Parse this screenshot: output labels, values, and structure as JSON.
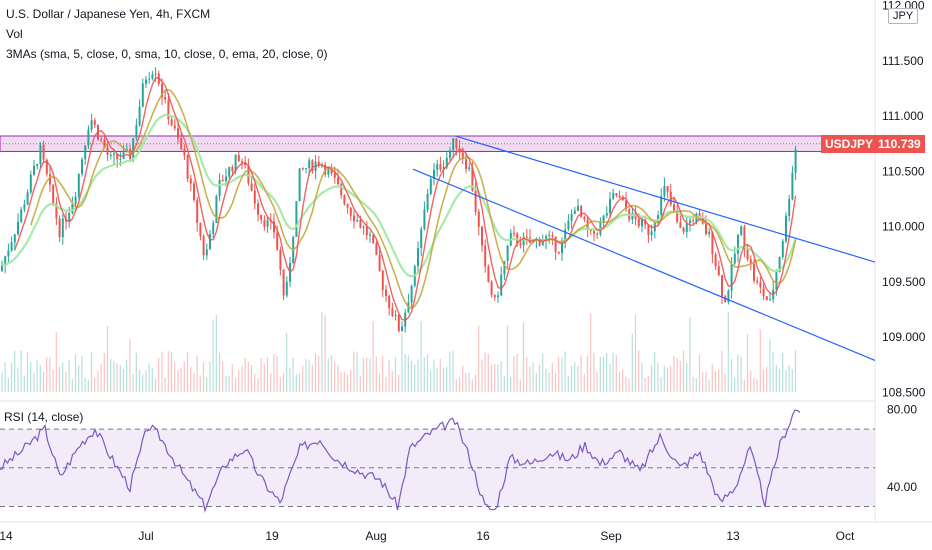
{
  "header": {
    "title": "U.S. Dollar / Japanese Yen, 4h, FXCM",
    "vol_label": "Vol",
    "ma_label": "3MAs (sma, 5, close, 0, sma, 10, close, 0, ema, 20, close, 0)",
    "rsi_label": "RSI (14, close)"
  },
  "currency_badge": "JPY",
  "symbol_tag": "USDJPY",
  "last_price": "110.739",
  "colors": {
    "up": "#26a69a",
    "down": "#ef5350",
    "sma5": "#ef5350",
    "sma10": "#c4a93f",
    "ema20": "#9ee89e",
    "channel": "#2962ff",
    "resistance": "#9c27b0",
    "rsi": "#7e57c2",
    "rsi_band": "#ede7f6"
  },
  "chart_data": {
    "type": "candlestick",
    "price_axis": {
      "ticks": [
        "112.000",
        "111.500",
        "111.000",
        "110.500",
        "110.000",
        "109.500",
        "109.000",
        "108.500"
      ],
      "range": [
        108.45,
        112.05
      ]
    },
    "x_axis": {
      "ticks": [
        "14",
        "Jul",
        "19",
        "Aug",
        "16",
        "Sep",
        "13",
        "Oct"
      ]
    },
    "resistance_zone": [
      110.68,
      110.82
    ],
    "channel": {
      "upper": [
        [
          "Aug 10",
          110.82
        ],
        [
          "Oct 1",
          109.68
        ]
      ],
      "lower": [
        [
          "Aug 4",
          110.52
        ],
        [
          "Oct 1",
          108.79
        ]
      ]
    },
    "price_path": [
      [
        0,
        109.6
      ],
      [
        20,
        110.1
      ],
      [
        40,
        110.7
      ],
      [
        60,
        109.95
      ],
      [
        75,
        110.3
      ],
      [
        90,
        111.0
      ],
      [
        110,
        110.6
      ],
      [
        130,
        110.65
      ],
      [
        145,
        111.35
      ],
      [
        155,
        111.45
      ],
      [
        165,
        111.1
      ],
      [
        185,
        110.6
      ],
      [
        205,
        109.7
      ],
      [
        220,
        110.4
      ],
      [
        240,
        110.65
      ],
      [
        260,
        110.1
      ],
      [
        275,
        109.95
      ],
      [
        285,
        109.3
      ],
      [
        300,
        110.5
      ],
      [
        320,
        110.6
      ],
      [
        335,
        110.4
      ],
      [
        350,
        110.15
      ],
      [
        370,
        109.9
      ],
      [
        385,
        109.4
      ],
      [
        400,
        109.05
      ],
      [
        415,
        109.6
      ],
      [
        430,
        110.45
      ],
      [
        445,
        110.6
      ],
      [
        455,
        110.78
      ],
      [
        470,
        110.5
      ],
      [
        485,
        109.6
      ],
      [
        495,
        109.3
      ],
      [
        510,
        109.9
      ],
      [
        530,
        109.85
      ],
      [
        545,
        109.9
      ],
      [
        560,
        109.8
      ],
      [
        575,
        110.2
      ],
      [
        590,
        109.9
      ],
      [
        600,
        110.0
      ],
      [
        615,
        110.3
      ],
      [
        630,
        110.1
      ],
      [
        650,
        109.95
      ],
      [
        665,
        110.35
      ],
      [
        680,
        109.95
      ],
      [
        695,
        110.1
      ],
      [
        710,
        109.9
      ],
      [
        725,
        109.3
      ],
      [
        740,
        110.0
      ],
      [
        755,
        109.5
      ],
      [
        770,
        109.3
      ],
      [
        785,
        110.0
      ],
      [
        795,
        110.7
      ],
      [
        800,
        110.739
      ]
    ],
    "rsi_axis": {
      "ticks": [
        "80.00",
        "40.00"
      ],
      "range": [
        22,
        84
      ],
      "bands": [
        70,
        30
      ],
      "mid": 50
    },
    "rsi_path": [
      [
        0,
        50
      ],
      [
        20,
        58
      ],
      [
        45,
        70
      ],
      [
        60,
        45
      ],
      [
        80,
        62
      ],
      [
        95,
        70
      ],
      [
        115,
        52
      ],
      [
        130,
        40
      ],
      [
        148,
        72
      ],
      [
        160,
        66
      ],
      [
        185,
        45
      ],
      [
        205,
        30
      ],
      [
        225,
        52
      ],
      [
        245,
        60
      ],
      [
        260,
        45
      ],
      [
        280,
        32
      ],
      [
        300,
        60
      ],
      [
        320,
        65
      ],
      [
        335,
        55
      ],
      [
        360,
        48
      ],
      [
        380,
        44
      ],
      [
        398,
        30
      ],
      [
        410,
        60
      ],
      [
        430,
        68
      ],
      [
        445,
        72
      ],
      [
        455,
        74
      ],
      [
        470,
        55
      ],
      [
        485,
        30
      ],
      [
        495,
        28
      ],
      [
        510,
        55
      ],
      [
        530,
        52
      ],
      [
        550,
        58
      ],
      [
        570,
        54
      ],
      [
        585,
        62
      ],
      [
        600,
        52
      ],
      [
        620,
        58
      ],
      [
        640,
        48
      ],
      [
        660,
        66
      ],
      [
        680,
        50
      ],
      [
        700,
        58
      ],
      [
        720,
        32
      ],
      [
        735,
        40
      ],
      [
        750,
        60
      ],
      [
        765,
        32
      ],
      [
        780,
        62
      ],
      [
        795,
        80
      ],
      [
        800,
        80
      ]
    ]
  }
}
